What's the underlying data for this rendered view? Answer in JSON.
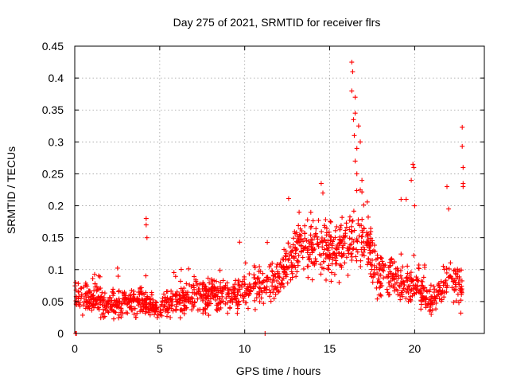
{
  "chart_data": {
    "type": "scatter",
    "title": "Day 275 of 2021, SRMTID for receiver flrs",
    "xlabel": "GPS time / hours",
    "ylabel": "SRMTID / TECUs",
    "xlim": [
      0,
      24.1
    ],
    "ylim": [
      0,
      0.45
    ],
    "x_ticks": [
      0,
      5,
      10,
      15,
      20
    ],
    "y_ticks": [
      0,
      0.05,
      0.1,
      0.15,
      0.2,
      0.25,
      0.3,
      0.35,
      0.4,
      0.45
    ],
    "grid": true,
    "marker": "+",
    "color": "#ff0000",
    "series": [
      {
        "name": "SRMTID",
        "envelope": [
          {
            "x": 0.0,
            "y": 0.06,
            "spread": 0.022
          },
          {
            "x": 1.0,
            "y": 0.055,
            "spread": 0.022
          },
          {
            "x": 2.0,
            "y": 0.045,
            "spread": 0.02
          },
          {
            "x": 3.0,
            "y": 0.048,
            "spread": 0.02
          },
          {
            "x": 4.0,
            "y": 0.05,
            "spread": 0.02
          },
          {
            "x": 5.0,
            "y": 0.04,
            "spread": 0.015
          },
          {
            "x": 6.0,
            "y": 0.05,
            "spread": 0.02
          },
          {
            "x": 7.0,
            "y": 0.06,
            "spread": 0.022
          },
          {
            "x": 8.0,
            "y": 0.06,
            "spread": 0.022
          },
          {
            "x": 9.0,
            "y": 0.06,
            "spread": 0.025
          },
          {
            "x": 10.0,
            "y": 0.07,
            "spread": 0.025
          },
          {
            "x": 11.0,
            "y": 0.075,
            "spread": 0.028
          },
          {
            "x": 12.0,
            "y": 0.09,
            "spread": 0.03
          },
          {
            "x": 13.0,
            "y": 0.13,
            "spread": 0.035
          },
          {
            "x": 14.0,
            "y": 0.14,
            "spread": 0.04
          },
          {
            "x": 15.0,
            "y": 0.13,
            "spread": 0.04
          },
          {
            "x": 16.0,
            "y": 0.14,
            "spread": 0.045
          },
          {
            "x": 17.0,
            "y": 0.15,
            "spread": 0.045
          },
          {
            "x": 18.0,
            "y": 0.09,
            "spread": 0.035
          },
          {
            "x": 19.0,
            "y": 0.08,
            "spread": 0.03
          },
          {
            "x": 20.0,
            "y": 0.075,
            "spread": 0.025
          },
          {
            "x": 21.0,
            "y": 0.05,
            "spread": 0.015
          },
          {
            "x": 22.0,
            "y": 0.08,
            "spread": 0.03
          },
          {
            "x": 22.8,
            "y": 0.07,
            "spread": 0.03
          }
        ],
        "count": 1500,
        "peaks": [
          {
            "x": 4.2,
            "y": 0.18
          },
          {
            "x": 4.2,
            "y": 0.17
          },
          {
            "x": 4.25,
            "y": 0.15
          },
          {
            "x": 9.7,
            "y": 0.143
          },
          {
            "x": 13.2,
            "y": 0.19
          },
          {
            "x": 14.5,
            "y": 0.235
          },
          {
            "x": 14.6,
            "y": 0.22
          },
          {
            "x": 16.3,
            "y": 0.425
          },
          {
            "x": 16.35,
            "y": 0.41
          },
          {
            "x": 16.3,
            "y": 0.38
          },
          {
            "x": 16.5,
            "y": 0.37
          },
          {
            "x": 16.5,
            "y": 0.345
          },
          {
            "x": 16.4,
            "y": 0.335
          },
          {
            "x": 16.7,
            "y": 0.325
          },
          {
            "x": 16.45,
            "y": 0.31
          },
          {
            "x": 16.8,
            "y": 0.3
          },
          {
            "x": 16.6,
            "y": 0.29
          },
          {
            "x": 16.5,
            "y": 0.27
          },
          {
            "x": 16.6,
            "y": 0.25
          },
          {
            "x": 16.9,
            "y": 0.24
          },
          {
            "x": 16.8,
            "y": 0.225
          },
          {
            "x": 19.2,
            "y": 0.21
          },
          {
            "x": 19.5,
            "y": 0.21
          },
          {
            "x": 19.8,
            "y": 0.24
          },
          {
            "x": 19.9,
            "y": 0.265
          },
          {
            "x": 19.95,
            "y": 0.26
          },
          {
            "x": 20.0,
            "y": 0.2
          },
          {
            "x": 21.9,
            "y": 0.23
          },
          {
            "x": 22.0,
            "y": 0.195
          },
          {
            "x": 22.8,
            "y": 0.323
          },
          {
            "x": 22.8,
            "y": 0.293
          },
          {
            "x": 22.85,
            "y": 0.26
          },
          {
            "x": 22.85,
            "y": 0.235
          },
          {
            "x": 22.85,
            "y": 0.23
          },
          {
            "x": 0.05,
            "y": 0.0
          },
          {
            "x": 0.1,
            "y": 0.0
          },
          {
            "x": 11.2,
            "y": 0.0
          }
        ]
      }
    ]
  }
}
